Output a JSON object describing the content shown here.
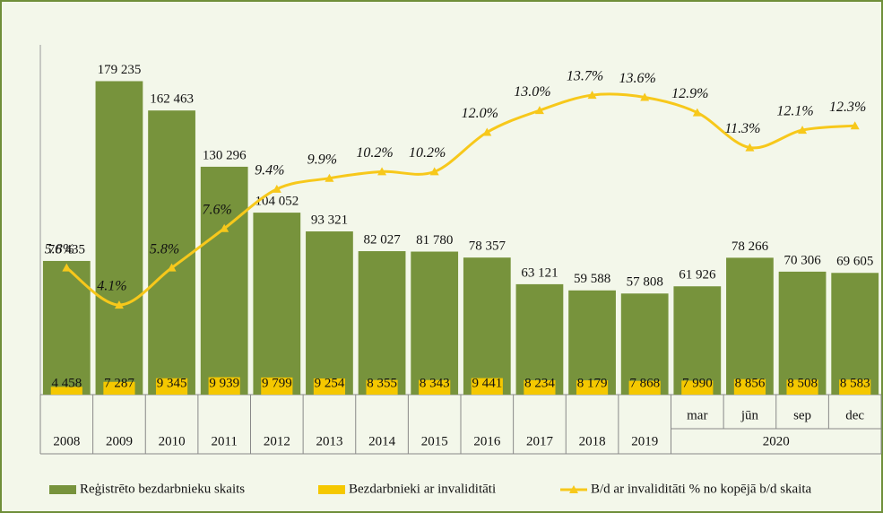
{
  "chart_data": {
    "type": "bar",
    "categories": [
      "2008",
      "2009",
      "2010",
      "2011",
      "2012",
      "2013",
      "2014",
      "2015",
      "2016",
      "2017",
      "2018",
      "2019",
      "mar",
      "jūn",
      "sep",
      "dec"
    ],
    "group_label": "2020",
    "ylim": [
      0,
      200000
    ],
    "y2lim": [
      0,
      16
    ],
    "series": [
      {
        "name": "Reģistrēto bezdarbnieku skaits",
        "type": "bar",
        "color": "#77933c",
        "values": [
          76435,
          179235,
          162463,
          130296,
          104052,
          93321,
          82027,
          81780,
          78357,
          63121,
          59588,
          57808,
          61926,
          78266,
          70306,
          69605
        ],
        "value_labels": [
          "76 435",
          "179 235",
          "162 463",
          "130 296",
          "104 052",
          "93 321",
          "82 027",
          "81 780",
          "78 357",
          "63 121",
          "59 588",
          "57 808",
          "61 926",
          "78 266",
          "70 306",
          "69 605"
        ]
      },
      {
        "name": "Bezdarbnieki ar invaliditāti",
        "type": "bar",
        "color": "#f5c800",
        "values": [
          4458,
          7287,
          9345,
          9939,
          9799,
          9254,
          8355,
          8343,
          9441,
          8234,
          8179,
          7868,
          7990,
          8856,
          8508,
          8583
        ],
        "value_labels": [
          "4 458",
          "7 287",
          "9 345",
          "9 939",
          "9 799",
          "9 254",
          "8 355",
          "8 343",
          "9 441",
          "8 234",
          "8 179",
          "7 868",
          "7 990",
          "8 856",
          "8 508",
          "8 583"
        ]
      },
      {
        "name": "B/d ar invaliditāti % no kopējā b/d skaita",
        "type": "line",
        "axis": "y2",
        "color": "#f7c81b",
        "values": [
          5.8,
          4.1,
          5.8,
          7.6,
          9.4,
          9.9,
          10.2,
          10.2,
          12.0,
          13.0,
          13.7,
          13.6,
          12.9,
          11.3,
          12.1,
          12.3
        ],
        "value_labels": [
          "5.8%",
          "4.1%",
          "5.8%",
          "7.6%",
          "9.4%",
          "9.9%",
          "10.2%",
          "10.2%",
          "12.0%",
          "13.0%",
          "13.7%",
          "13.6%",
          "12.9%",
          "11.3%",
          "12.1%",
          "12.3%"
        ]
      }
    ]
  }
}
